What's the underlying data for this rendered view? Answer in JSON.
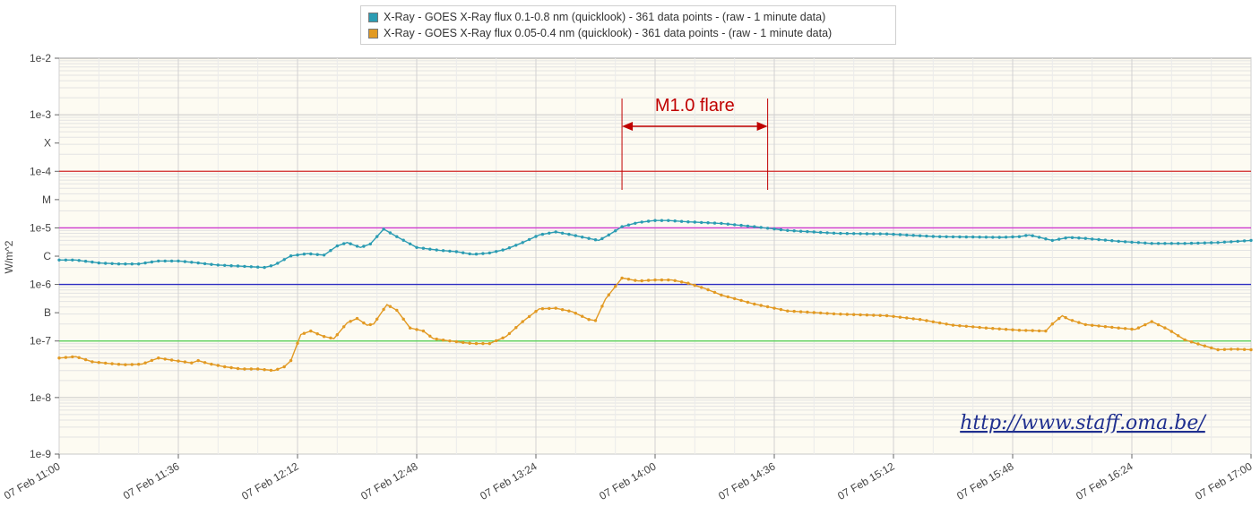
{
  "legend": [
    {
      "label": "X-Ray - GOES X-Ray flux 0.1-0.8 nm (quicklook) - 361 data points -  (raw - 1 minute data)",
      "color": "#2b9cb3"
    },
    {
      "label": "X-Ray - GOES X-Ray flux 0.05-0.4 nm (quicklook) - 361 data points -  (raw - 1 minute data)",
      "color": "#e29a23"
    }
  ],
  "annotation": {
    "flare_label": "M1.0 flare",
    "flare_start": "13:50",
    "flare_end": "14:34",
    "label_color": "#c00000"
  },
  "url_text": "http://www.staff.oma.be/",
  "chart_data": {
    "type": "line",
    "ylabel": "W/m^2",
    "xlabel": "",
    "yscale": "log",
    "ylim": [
      1e-09,
      0.01
    ],
    "xlim": [
      "11:00",
      "17:00"
    ],
    "grid": true,
    "legend_position": "top-center",
    "x_ticks": [
      "07 Feb 11:00",
      "07 Feb 11:36",
      "07 Feb 12:12",
      "07 Feb 12:48",
      "07 Feb 13:24",
      "07 Feb 14:00",
      "07 Feb 14:36",
      "07 Feb 15:12",
      "07 Feb 15:48",
      "07 Feb 16:24",
      "07 Feb 17:00"
    ],
    "y_ticks": [
      {
        "value": 0.01,
        "label": "1e-2"
      },
      {
        "value": 0.001,
        "label": "1e-3"
      },
      {
        "value": 0.000316,
        "label": "X"
      },
      {
        "value": 0.0001,
        "label": "1e-4"
      },
      {
        "value": 3.16e-05,
        "label": "M"
      },
      {
        "value": 1e-05,
        "label": "1e-5"
      },
      {
        "value": 3.16e-06,
        "label": "C"
      },
      {
        "value": 1e-06,
        "label": "1e-6"
      },
      {
        "value": 3.16e-07,
        "label": "B"
      },
      {
        "value": 1e-07,
        "label": "1e-7"
      },
      {
        "value": 1e-08,
        "label": "1e-8"
      },
      {
        "value": 1e-09,
        "label": "1e-9"
      }
    ],
    "threshold_lines": [
      {
        "value": 0.0001,
        "color": "#d42a2a"
      },
      {
        "value": 1e-05,
        "color": "#d03ad0"
      },
      {
        "value": 1e-06,
        "color": "#2d2dc2"
      },
      {
        "value": 1e-07,
        "color": "#4fd14f"
      }
    ],
    "series": [
      {
        "name": "X-Ray - GOES X-Ray flux 0.1-0.8 nm (quicklook) - 361 data points -  (raw - 1 minute data)",
        "color": "#2b9cb3",
        "points": [
          [
            "11:00",
            2.7e-06
          ],
          [
            "11:05",
            2.7e-06
          ],
          [
            "11:12",
            2.4e-06
          ],
          [
            "11:18",
            2.3e-06
          ],
          [
            "11:24",
            2.3e-06
          ],
          [
            "11:30",
            2.6e-06
          ],
          [
            "11:36",
            2.6e-06
          ],
          [
            "11:42",
            2.4e-06
          ],
          [
            "11:48",
            2.2e-06
          ],
          [
            "11:55",
            2.1e-06
          ],
          [
            "12:02",
            2e-06
          ],
          [
            "12:05",
            2.2e-06
          ],
          [
            "12:10",
            3.2e-06
          ],
          [
            "12:15",
            3.5e-06
          ],
          [
            "12:20",
            3.3e-06
          ],
          [
            "12:24",
            4.8e-06
          ],
          [
            "12:27",
            5.5e-06
          ],
          [
            "12:31",
            4.5e-06
          ],
          [
            "12:34",
            5.2e-06
          ],
          [
            "12:38",
            9.5e-06
          ],
          [
            "12:42",
            7e-06
          ],
          [
            "12:48",
            4.5e-06
          ],
          [
            "12:55",
            4e-06
          ],
          [
            "13:00",
            3.8e-06
          ],
          [
            "13:05",
            3.4e-06
          ],
          [
            "13:10",
            3.6e-06
          ],
          [
            "13:15",
            4.2e-06
          ],
          [
            "13:20",
            5.5e-06
          ],
          [
            "13:25",
            7.5e-06
          ],
          [
            "13:30",
            8.5e-06
          ],
          [
            "13:35",
            7.5e-06
          ],
          [
            "13:40",
            6.5e-06
          ],
          [
            "13:43",
            6e-06
          ],
          [
            "13:46",
            7.5e-06
          ],
          [
            "13:50",
            1.05e-05
          ],
          [
            "13:55",
            1.25e-05
          ],
          [
            "14:00",
            1.35e-05
          ],
          [
            "14:04",
            1.35e-05
          ],
          [
            "14:10",
            1.28e-05
          ],
          [
            "14:20",
            1.2e-05
          ],
          [
            "14:30",
            1.05e-05
          ],
          [
            "14:40",
            9e-06
          ],
          [
            "14:55",
            8e-06
          ],
          [
            "15:10",
            7.8e-06
          ],
          [
            "15:25",
            7e-06
          ],
          [
            "15:45",
            6.8e-06
          ],
          [
            "15:50",
            7e-06
          ],
          [
            "15:53",
            7.5e-06
          ],
          [
            "16:00",
            6e-06
          ],
          [
            "16:05",
            6.8e-06
          ],
          [
            "16:10",
            6.5e-06
          ],
          [
            "16:20",
            5.8e-06
          ],
          [
            "16:30",
            5.3e-06
          ],
          [
            "16:40",
            5.3e-06
          ],
          [
            "16:50",
            5.5e-06
          ],
          [
            "17:00",
            6e-06
          ]
        ]
      },
      {
        "name": "X-Ray - GOES X-Ray flux 0.05-0.4 nm (quicklook) - 361 data points -  (raw - 1 minute data)",
        "color": "#e29a23",
        "points": [
          [
            "11:00",
            5e-08
          ],
          [
            "11:05",
            5.3e-08
          ],
          [
            "11:10",
            4.3e-08
          ],
          [
            "11:15",
            4e-08
          ],
          [
            "11:20",
            3.8e-08
          ],
          [
            "11:25",
            3.9e-08
          ],
          [
            "11:30",
            5e-08
          ],
          [
            "11:35",
            4.5e-08
          ],
          [
            "11:40",
            4.1e-08
          ],
          [
            "11:42",
            4.5e-08
          ],
          [
            "11:45",
            4e-08
          ],
          [
            "11:50",
            3.5e-08
          ],
          [
            "11:55",
            3.2e-08
          ],
          [
            "12:00",
            3.2e-08
          ],
          [
            "12:05",
            3e-08
          ],
          [
            "12:08",
            3.5e-08
          ],
          [
            "12:10",
            4.5e-08
          ],
          [
            "12:13",
            1.3e-07
          ],
          [
            "12:16",
            1.5e-07
          ],
          [
            "12:20",
            1.2e-07
          ],
          [
            "12:23",
            1.1e-07
          ],
          [
            "12:27",
            2.1e-07
          ],
          [
            "12:30",
            2.5e-07
          ],
          [
            "12:33",
            1.9e-07
          ],
          [
            "12:35",
            2e-07
          ],
          [
            "12:39",
            4.4e-07
          ],
          [
            "12:42",
            3.5e-07
          ],
          [
            "12:46",
            1.7e-07
          ],
          [
            "12:50",
            1.5e-07
          ],
          [
            "12:53",
            1.1e-07
          ],
          [
            "12:58",
            1e-07
          ],
          [
            "13:05",
            9e-08
          ],
          [
            "13:10",
            9e-08
          ],
          [
            "13:15",
            1.2e-07
          ],
          [
            "13:20",
            2.2e-07
          ],
          [
            "13:25",
            3.7e-07
          ],
          [
            "13:30",
            3.8e-07
          ],
          [
            "13:35",
            3.3e-07
          ],
          [
            "13:40",
            2.4e-07
          ],
          [
            "13:42",
            2.3e-07
          ],
          [
            "13:45",
            5.5e-07
          ],
          [
            "13:50",
            1.3e-06
          ],
          [
            "13:55",
            1.15e-06
          ],
          [
            "14:00",
            1.2e-06
          ],
          [
            "14:05",
            1.2e-06
          ],
          [
            "14:10",
            1.05e-06
          ],
          [
            "14:15",
            8.5e-07
          ],
          [
            "14:20",
            6.5e-07
          ],
          [
            "14:30",
            4.5e-07
          ],
          [
            "14:40",
            3.4e-07
          ],
          [
            "14:55",
            3e-07
          ],
          [
            "15:10",
            2.8e-07
          ],
          [
            "15:20",
            2.4e-07
          ],
          [
            "15:30",
            1.9e-07
          ],
          [
            "15:40",
            1.7e-07
          ],
          [
            "15:50",
            1.55e-07
          ],
          [
            "15:58",
            1.5e-07
          ],
          [
            "16:00",
            2e-07
          ],
          [
            "16:03",
            2.8e-07
          ],
          [
            "16:05",
            2.4e-07
          ],
          [
            "16:10",
            1.95e-07
          ],
          [
            "16:20",
            1.7e-07
          ],
          [
            "16:25",
            1.6e-07
          ],
          [
            "16:30",
            2.2e-07
          ],
          [
            "16:35",
            1.6e-07
          ],
          [
            "16:40",
            1.05e-07
          ],
          [
            "16:45",
            8.5e-08
          ],
          [
            "16:50",
            7e-08
          ],
          [
            "16:55",
            7.2e-08
          ],
          [
            "17:00",
            7e-08
          ]
        ]
      }
    ]
  }
}
